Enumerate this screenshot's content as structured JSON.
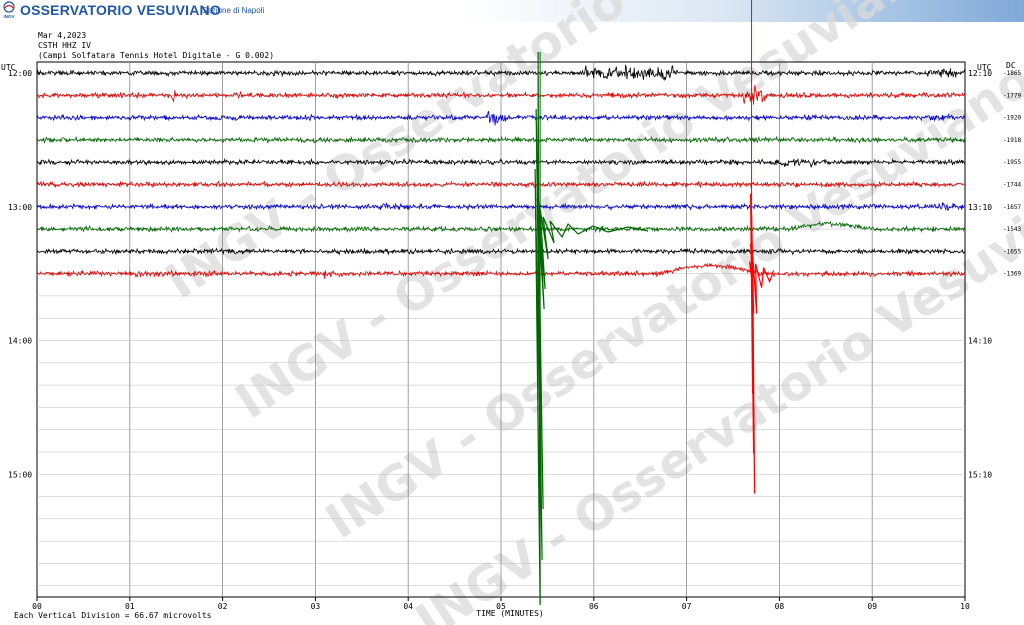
{
  "header": {
    "title": "OSSERVATORIO VESUVIANO",
    "subtitle": "Sezione di Napoli",
    "logo_text": "INGV"
  },
  "meta": {
    "date": "Mar 4,2023",
    "station": "CSTH HHZ IV",
    "description": "(Campi Solfatara Tennis Hotel Digitale - G 0.002)"
  },
  "chart_data": {
    "type": "line",
    "title": "",
    "xlabel": "TIME (MINUTES)",
    "ylabel": "",
    "x_ticks": [
      "00",
      "01",
      "02",
      "03",
      "04",
      "05",
      "06",
      "07",
      "08",
      "09",
      "10"
    ],
    "xlim": [
      0,
      10
    ],
    "left_axis_title": "UTC",
    "right_axis_title": "UTC",
    "offset_header": "DC",
    "left_time_labels": [
      {
        "row": 0,
        "label": "12:00"
      },
      {
        "row": 6,
        "label": "13:00"
      },
      {
        "row": 12,
        "label": "14:00"
      },
      {
        "row": 18,
        "label": "15:00"
      }
    ],
    "right_time_labels": [
      {
        "row": 0,
        "label": "12:10"
      },
      {
        "row": 6,
        "label": "13:10"
      },
      {
        "row": 12,
        "label": "14:10"
      },
      {
        "row": 18,
        "label": "15:10"
      }
    ],
    "rows_total": 24,
    "trace_colors": [
      "#000000",
      "#dd0000",
      "#0000cc",
      "#006600"
    ],
    "traces": [
      {
        "row": 0,
        "dc": "-1865",
        "color": "#000000"
      },
      {
        "row": 1,
        "dc": "-1779",
        "color": "#dd0000"
      },
      {
        "row": 2,
        "dc": "-1920",
        "color": "#0000cc"
      },
      {
        "row": 3,
        "dc": "-1918",
        "color": "#006600"
      },
      {
        "row": 4,
        "dc": "-1955",
        "color": "#000000"
      },
      {
        "row": 5,
        "dc": "-1744",
        "color": "#dd0000"
      },
      {
        "row": 6,
        "dc": "-1657",
        "color": "#0000cc"
      },
      {
        "row": 7,
        "dc": "-1543",
        "color": "#006600"
      },
      {
        "row": 8,
        "dc": "-1655",
        "color": "#000000"
      },
      {
        "row": 9,
        "dc": "-1369",
        "color": "#dd0000"
      }
    ],
    "events": [
      {
        "row": 7,
        "minute": 5.4,
        "type": "earthquake",
        "color": "#006600"
      },
      {
        "row": 9,
        "minute": 7.7,
        "type": "earthquake",
        "color": "#ff0000"
      }
    ],
    "grid": true,
    "footnote": "Each Vertical Division = 66.67 microvolts",
    "watermark": "INGV - Osservatorio Vesuviano"
  }
}
